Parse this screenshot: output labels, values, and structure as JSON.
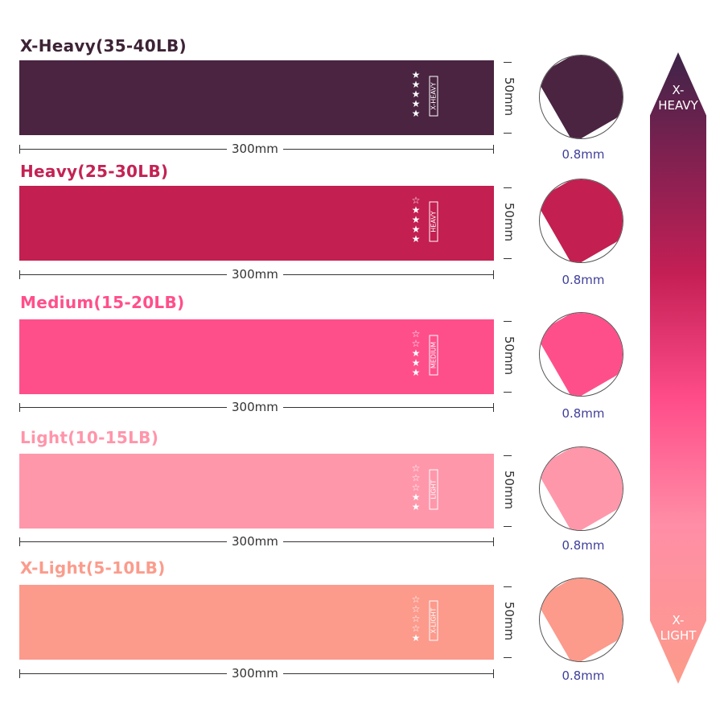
{
  "bands": [
    {
      "label": "X-Heavy(35-40LB)",
      "tag": "X-HEAVY",
      "stars": 5,
      "color": "#4a2441",
      "label_color": "#3d2336",
      "length": "300mm",
      "width": "50mm",
      "thickness": "0.8mm"
    },
    {
      "label": "Heavy(25-30LB)",
      "tag": "HEAVY",
      "stars": 4,
      "color": "#c31f51",
      "label_color": "#c42254",
      "length": "300mm",
      "width": "50mm",
      "thickness": "0.8mm"
    },
    {
      "label": "Medium(15-20LB)",
      "tag": "MEDIUM",
      "stars": 3,
      "color": "#ff4f8b",
      "label_color": "#ff4f8b",
      "length": "300mm",
      "width": "50mm",
      "thickness": "0.8mm"
    },
    {
      "label": "Light(10-15LB)",
      "tag": "LIGHT",
      "stars": 2,
      "color": "#ff97ab",
      "label_color": "#ff95aa",
      "length": "300mm",
      "width": "50mm",
      "thickness": "0.8mm"
    },
    {
      "label": "X-Light(5-10LB)",
      "tag": "X-LIGHT",
      "stars": 1,
      "color": "#fc9a8c",
      "label_color": "#fb9c8c",
      "length": "300mm",
      "width": "50mm",
      "thickness": "0.8mm"
    }
  ],
  "scale": {
    "top": "X-\nHEAVY",
    "bottom": "X-\nLIGHT"
  }
}
